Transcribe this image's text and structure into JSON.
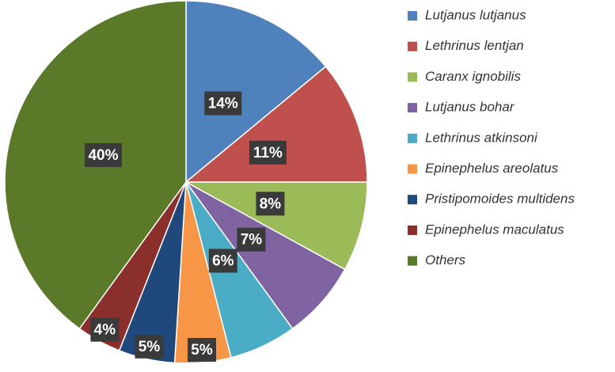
{
  "chart_data": {
    "type": "pie",
    "categories": [
      "Lutjanus lutjanus",
      "Lethrinus lentjan",
      "Caranx ignobilis",
      "Lutjanus bohar",
      "Lethrinus atkinsoni",
      "Epinephelus areolatus",
      "Pristipomoides multidens",
      "Epinephelus maculatus",
      "Others"
    ],
    "values": [
      14,
      11,
      8,
      7,
      6,
      5,
      5,
      4,
      40
    ],
    "value_labels": [
      "14%",
      "11%",
      "8%",
      "7%",
      "6%",
      "5%",
      "5%",
      "4%",
      "40%"
    ],
    "colors": [
      "#4f81bd",
      "#c0504d",
      "#9bbb59",
      "#8064a2",
      "#4bacc6",
      "#f79646",
      "#1f497d",
      "#8b2f2c",
      "#5a7a2a"
    ],
    "legend": "right"
  }
}
